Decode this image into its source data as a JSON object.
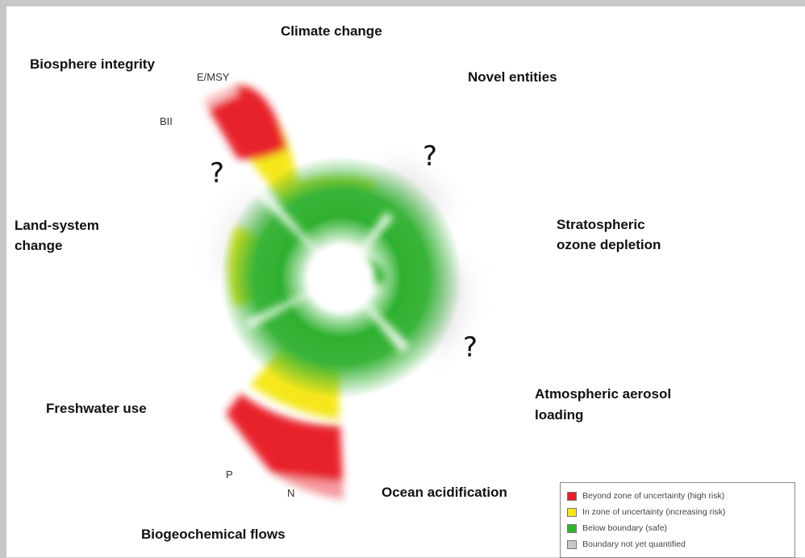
{
  "labels": {
    "climate_change": "Climate change",
    "biosphere_integrity": "Biosphere integrity",
    "novel_entities": "Novel entities",
    "land_system_change_1": "Land-system",
    "land_system_change_2": "change",
    "stratospheric_1": "Stratospheric",
    "stratospheric_2": "ozone depletion",
    "freshwater_use": "Freshwater use",
    "aerosol_1": "Atmospheric aerosol",
    "aerosol_2": "loading",
    "ocean_acidification": "Ocean acidification",
    "biogeochemical_flows": "Biogeochemical flows"
  },
  "sublabels": {
    "emsy": "E/MSY",
    "bii": "BII",
    "p": "P",
    "n": "N"
  },
  "question_mark": "?",
  "legend": {
    "items": [
      {
        "label": "Beyond zone of uncertainty (high risk)",
        "color": "#e8202a"
      },
      {
        "label": "In zone of uncertainty (increasing risk)",
        "color": "#f5e71c"
      },
      {
        "label": "Below boundary (safe)",
        "color": "#32b432"
      },
      {
        "label": "Boundary not yet quantified",
        "color": "#c8c8c8"
      }
    ]
  },
  "colors": {
    "red": "#e8202a",
    "yellow": "#f5e71c",
    "green": "#32b432",
    "grey": "#cfcfcf"
  }
}
